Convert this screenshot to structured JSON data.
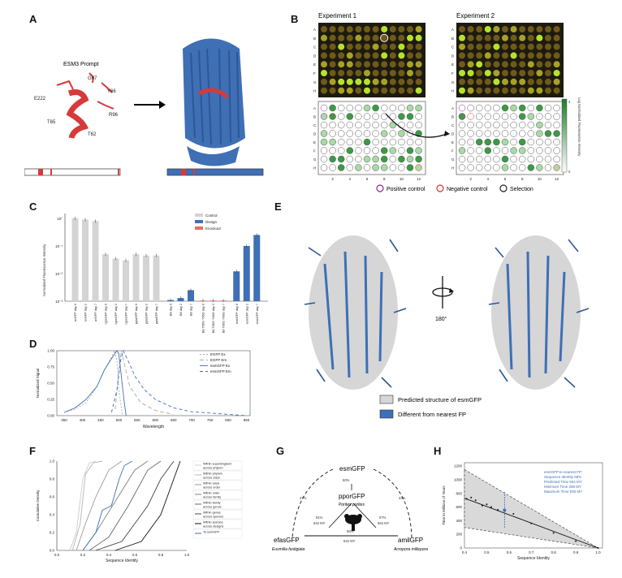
{
  "letters": {
    "a": "A",
    "b": "B",
    "c": "C",
    "d": "D",
    "e": "E",
    "f": "F",
    "g": "G",
    "h": "H"
  },
  "panel_a": {
    "prompt_label": "ESM3 Prompt",
    "residues": [
      "G67",
      "Y66",
      "E222",
      "R96",
      "T65",
      "T62"
    ]
  },
  "panel_b": {
    "exp1": "Experiment 1",
    "exp2": "Experiment 2",
    "rows": [
      "A",
      "B",
      "C",
      "D",
      "E",
      "F",
      "G",
      "H"
    ],
    "cols": [
      "2",
      "4",
      "6",
      "8",
      "10",
      "12"
    ],
    "colorbar_label": "Log Normalized Fluorescence Intensity",
    "colorbar_ticks": [
      "4",
      "0"
    ],
    "legend": [
      "Positive control",
      "Negative control",
      "Selection"
    ],
    "legend_colors": [
      "#8b2a8f",
      "#e03030",
      "#222222"
    ]
  },
  "panel_c": {
    "ylabel": "Normalized Fluorescence Intensity",
    "legend": [
      "Control",
      "Design",
      "Knockout"
    ],
    "yticks": [
      "10°",
      "10⁻¹",
      "10⁻²",
      "10⁻³"
    ]
  },
  "panel_e": {
    "rotation": "180°",
    "legend": [
      "Predicted structure of esmGFP",
      "Different from nearest FP"
    ]
  },
  "panel_g": {
    "top": "esmGFP",
    "middle": "pporGFP",
    "middle_species": "Porites porites",
    "left": "efasGFP",
    "left_species": "Eusmilia fastigiata",
    "right": "amilGFP",
    "right_species": "Acropora millepora",
    "pct_top": "50%",
    "pct_left": "47%",
    "pct_right": "43%",
    "left_mid": "81%",
    "left_my": "642 MY",
    "right_mid": "57%",
    "right_my": "564 MY",
    "bottom_pct": "56%",
    "bottom_my": "642 MY"
  },
  "panel_h": {
    "ylabel": "Time in Millions of Years",
    "xlabel": "Sequence Identity",
    "annotation": [
      "esmGFP to nearest FP:",
      "Sequence Identity 58%",
      "Predicted Time 554 MY",
      "Minimum Time 298 MY",
      "Maximum Time 830 MY"
    ]
  },
  "chart_data": [
    {
      "type": "bar",
      "panel": "C",
      "ylabel": "Normalized Fluorescence Intensity",
      "yscale": "log",
      "ylim": [
        0.001,
        1.5
      ],
      "legend": [
        "Control",
        "Design",
        "Knockout"
      ],
      "legend_position": "top-right",
      "categories": [
        "avGFP day 0",
        "avGFP day 2",
        "avGFP day 7",
        "cgreGFP day 0",
        "cgreGFP day 2",
        "cgreGFP day 7",
        "ppluGFP day 0",
        "ppluGFP day 2",
        "ppluGFP day 7",
        "B8 day 0",
        "B8 day 2",
        "B8 day 7",
        "B8 T65G Y66G day 0",
        "B8 T65G Y66G day 2",
        "B8 T65G Y66G day 7",
        "esmGFP day 0",
        "esmGFP day 2",
        "esmGFP day 7"
      ],
      "series": [
        {
          "name": "Control",
          "color": "#d4d4d4",
          "values": [
            1.0,
            0.9,
            0.8,
            0.05,
            0.035,
            0.03,
            0.05,
            0.045,
            0.045,
            null,
            null,
            null,
            null,
            null,
            null,
            null,
            null,
            null
          ]
        },
        {
          "name": "Design",
          "color": "#3f6fb5",
          "values": [
            null,
            null,
            null,
            null,
            null,
            null,
            null,
            null,
            null,
            0.0011,
            0.0013,
            0.0025,
            null,
            null,
            null,
            0.012,
            0.1,
            0.25
          ]
        },
        {
          "name": "Knockout",
          "color": "#ec6a5c",
          "values": [
            null,
            null,
            null,
            null,
            null,
            null,
            null,
            null,
            null,
            null,
            null,
            null,
            0.00105,
            0.00105,
            0.00105,
            null,
            null,
            null
          ]
        }
      ]
    },
    {
      "type": "line",
      "panel": "D",
      "ylabel": "Normalized Signal",
      "xlabel": "Wavelength",
      "xlim": [
        330,
        860
      ],
      "ylim": [
        0,
        1.0
      ],
      "xticks": [
        350,
        400,
        450,
        500,
        550,
        600,
        650,
        700,
        750,
        800,
        850
      ],
      "yticks": [
        0.0,
        0.25,
        0.5,
        0.75,
        1.0
      ],
      "legend_position": "top-right",
      "series": [
        {
          "name": "EGFP Ex",
          "color": "#aaaaaa",
          "dash": "2,2",
          "x": [
            350,
            380,
            410,
            440,
            460,
            480,
            488,
            495,
            500,
            510
          ],
          "y": [
            0.05,
            0.1,
            0.2,
            0.45,
            0.7,
            0.9,
            1.0,
            0.85,
            0.4,
            0.0
          ]
        },
        {
          "name": "EGFP Em",
          "color": "#aaaaaa",
          "dash": "5,3",
          "x": [
            490,
            500,
            507,
            515,
            530,
            560,
            600,
            650
          ],
          "y": [
            0.1,
            0.7,
            1.0,
            0.8,
            0.45,
            0.2,
            0.08,
            0.02
          ]
        },
        {
          "name": "esmGFP Ex",
          "color": "#3f6fb5",
          "dash": "",
          "x": [
            350,
            380,
            410,
            440,
            460,
            480,
            495,
            500,
            505,
            515,
            520
          ],
          "y": [
            0.05,
            0.12,
            0.25,
            0.45,
            0.7,
            0.88,
            1.0,
            0.95,
            0.7,
            0.2,
            0.0
          ]
        },
        {
          "name": "esmGFP Em",
          "color": "#3f6fb5",
          "dash": "4,3",
          "x": [
            480,
            495,
            505,
            512,
            525,
            545,
            570,
            600,
            650,
            700,
            800,
            850
          ],
          "y": [
            0.05,
            0.4,
            0.85,
            1.0,
            0.85,
            0.6,
            0.4,
            0.25,
            0.12,
            0.06,
            0.02,
            0.0
          ]
        }
      ]
    },
    {
      "type": "line",
      "panel": "F",
      "ylabel": "Cumulative Density",
      "xlabel": "Sequence Identity",
      "xlim": [
        0,
        1.0
      ],
      "ylim": [
        0,
        1.0
      ],
      "xticks": [
        0.0,
        0.2,
        0.4,
        0.6,
        0.8,
        1.0
      ],
      "yticks": [
        0.0,
        0.2,
        0.4,
        0.6,
        0.8,
        1.0
      ],
      "legend_position": "right",
      "series": [
        {
          "name": "Within superkingdom across phylum",
          "color": "#cccccc",
          "x": [
            0.1,
            0.15,
            0.2,
            0.25,
            0.3
          ],
          "y": [
            0,
            0.2,
            0.8,
            0.98,
            1.0
          ]
        },
        {
          "name": "Within phylum across class",
          "color": "#b5b5b5",
          "x": [
            0.12,
            0.18,
            0.22,
            0.28,
            0.35
          ],
          "y": [
            0,
            0.3,
            0.85,
            0.98,
            1.0
          ]
        },
        {
          "name": "Within class across order",
          "color": "#9a9a9a",
          "x": [
            0.15,
            0.22,
            0.3,
            0.4,
            0.5
          ],
          "y": [
            0,
            0.3,
            0.6,
            0.9,
            1.0
          ]
        },
        {
          "name": "Within order across family",
          "color": "#808080",
          "x": [
            0.2,
            0.3,
            0.45,
            0.6,
            0.7
          ],
          "y": [
            0,
            0.2,
            0.55,
            0.9,
            1.0
          ]
        },
        {
          "name": "Within family across genus",
          "color": "#666666",
          "x": [
            0.25,
            0.4,
            0.55,
            0.7,
            0.8
          ],
          "y": [
            0,
            0.15,
            0.5,
            0.9,
            1.0
          ]
        },
        {
          "name": "Within genus across species",
          "color": "#444444",
          "x": [
            0.3,
            0.5,
            0.7,
            0.8,
            0.9
          ],
          "y": [
            0,
            0.1,
            0.5,
            0.8,
            1.0
          ]
        },
        {
          "name": "Within species across designs",
          "color": "#111111",
          "x": [
            0.45,
            0.65,
            0.8,
            0.9,
            0.95
          ],
          "y": [
            0,
            0.1,
            0.4,
            0.8,
            1.0
          ]
        },
        {
          "name": "To esmGFP",
          "color": "#3f6fb5",
          "x": [
            0.2,
            0.3,
            0.35,
            0.42,
            0.48,
            0.52,
            0.58
          ],
          "y": [
            0,
            0.2,
            0.45,
            0.5,
            0.8,
            0.95,
            1.0
          ]
        }
      ]
    },
    {
      "type": "scatter",
      "panel": "H",
      "ylabel": "Time in Millions of Years",
      "xlabel": "Sequence Identity",
      "xlim": [
        0.4,
        1.02
      ],
      "ylim": [
        0,
        1250
      ],
      "xticks": [
        0.4,
        0.5,
        0.6,
        0.7,
        0.8,
        0.9,
        1.0
      ],
      "yticks": [
        0,
        200,
        400,
        600,
        800,
        1000,
        1200
      ],
      "points": [
        [
          0.41,
          720
        ],
        [
          0.43,
          740
        ],
        [
          0.45,
          700
        ],
        [
          0.48,
          620
        ],
        [
          0.5,
          640
        ],
        [
          0.52,
          600
        ],
        [
          0.55,
          560
        ],
        [
          0.58,
          554
        ],
        [
          0.62,
          500
        ],
        [
          0.7,
          360
        ],
        [
          0.8,
          220
        ],
        [
          0.9,
          100
        ],
        [
          1.0,
          0
        ]
      ],
      "fit_line": [
        [
          0.4,
          730
        ],
        [
          1.0,
          0
        ]
      ],
      "band_upper": [
        [
          0.4,
          1150
        ],
        [
          1.0,
          0
        ]
      ],
      "band_lower": [
        [
          0.4,
          300
        ],
        [
          1.0,
          0
        ]
      ],
      "highlight": {
        "x": 0.58,
        "y": 554,
        "min": 298,
        "max": 830
      }
    }
  ]
}
